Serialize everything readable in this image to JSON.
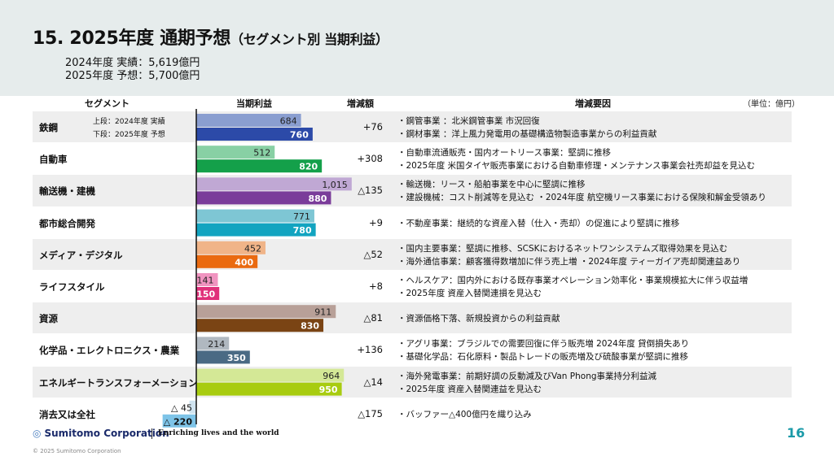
{
  "title": "15. 2025年度 通期予想",
  "title_suffix": "（セグメント別 当期利益）",
  "summary": [
    "2024年度 実績：5,619億円",
    "2025年度 予想：5,700億円"
  ],
  "columns": {
    "segment": "セグメント",
    "profit": "当期利益",
    "change": "増減額",
    "factors": "増減要因",
    "unit": "（単位：億円）"
  },
  "legend": [
    "上段：2024年度 実績",
    "下段：2025年度 予想"
  ],
  "chart_data": {
    "type": "bar",
    "categories": [
      "鉄鋼",
      "自動車",
      "輸送機・建機",
      "都市総合開発",
      "メディア・デジタル",
      "ライフスタイル",
      "資源",
      "化学品・エレクトロニクス・農業",
      "エネルギートランスフォーメーション",
      "消去又は全社"
    ],
    "series": [
      {
        "name": "2024年度 実績",
        "values": [
          684,
          512,
          1015,
          771,
          452,
          141,
          911,
          214,
          964,
          -45
        ]
      },
      {
        "name": "2025年度 予想",
        "values": [
          760,
          820,
          880,
          780,
          400,
          150,
          830,
          350,
          950,
          -220
        ]
      }
    ],
    "labels_prev": [
      "684",
      "512",
      "1,015",
      "771",
      "452",
      "141",
      "911",
      "214",
      "964",
      "△ 45"
    ],
    "labels_curr": [
      "760",
      "820",
      "880",
      "780",
      "400",
      "150",
      "830",
      "350",
      "950",
      "△ 220"
    ],
    "changes": [
      "+76",
      "+308",
      "△135",
      "+9",
      "△52",
      "+8",
      "△81",
      "+136",
      "△14",
      "△175"
    ],
    "colors_prev": [
      "#8a9ed0",
      "#88d0a4",
      "#c0a8d4",
      "#7ec6d4",
      "#f0b488",
      "#f094c0",
      "#b8a098",
      "#b0b8c0",
      "#d4e896",
      "#d0e4f0"
    ],
    "colors_curr": [
      "#2c4aa8",
      "#14a04a",
      "#7a3c9a",
      "#12a4c0",
      "#ea6a10",
      "#e0307a",
      "#7a4414",
      "#4a6a84",
      "#a8cc10",
      "#7ec4e8"
    ],
    "xlim": [
      -240,
      1060
    ]
  },
  "factors": [
    [
      "・鋼管事業 ：北米鋼管事業 市況回復",
      "・鋼材事業 ：洋上風力発電用の基礎構造物製造事業からの利益貢献"
    ],
    [
      "・自動車流通販売・国内オートリース事業：堅調に推移",
      "・2025年度 米国タイヤ販売事業における自動車修理・メンテナンス事業会社売却益を見込む"
    ],
    [
      "・輸送機：リース・船舶事業を中心に堅調に推移",
      "・建設機械：コスト削減等を見込む ・2024年度 航空機リース事業における保険和解金受領あり"
    ],
    [
      "・不動産事業：継続的な資産入替（仕入・売却）の促進により堅調に推移"
    ],
    [
      "・国内主要事業：堅調に推移、SCSKにおけるネットワンシステムズ取得効果を見込む",
      "・海外通信事業：顧客獲得数増加に伴う売上増 ・2024年度 ティーガイア売却関連益あり"
    ],
    [
      "・ヘルスケア：国内外における既存事業オペレーション効率化・事業規模拡大に伴う収益増",
      "・2025年度 資産入替関連損を見込む"
    ],
    [
      "・資源価格下落、新規投資からの利益貢献"
    ],
    [
      "・アグリ事業：ブラジルでの需要回復に伴う販売増 2024年度 貸倒損失あり",
      "・基礎化学品：石化原料・製品トレードの販売増及び硫酸事業が堅調に推移"
    ],
    [
      "・海外発電事業：前期好調の反動減及びVan Phong事業持分利益減",
      "・2025年度 資産入替関連益を見込む"
    ],
    [
      "・バッファー△400億円を織り込み"
    ]
  ],
  "footer": {
    "logo_text": "Sumitomo Corporation",
    "tagline": "Enriching lives and the world",
    "page": "16",
    "copyright": "© 2025 Sumitomo Corporation"
  }
}
